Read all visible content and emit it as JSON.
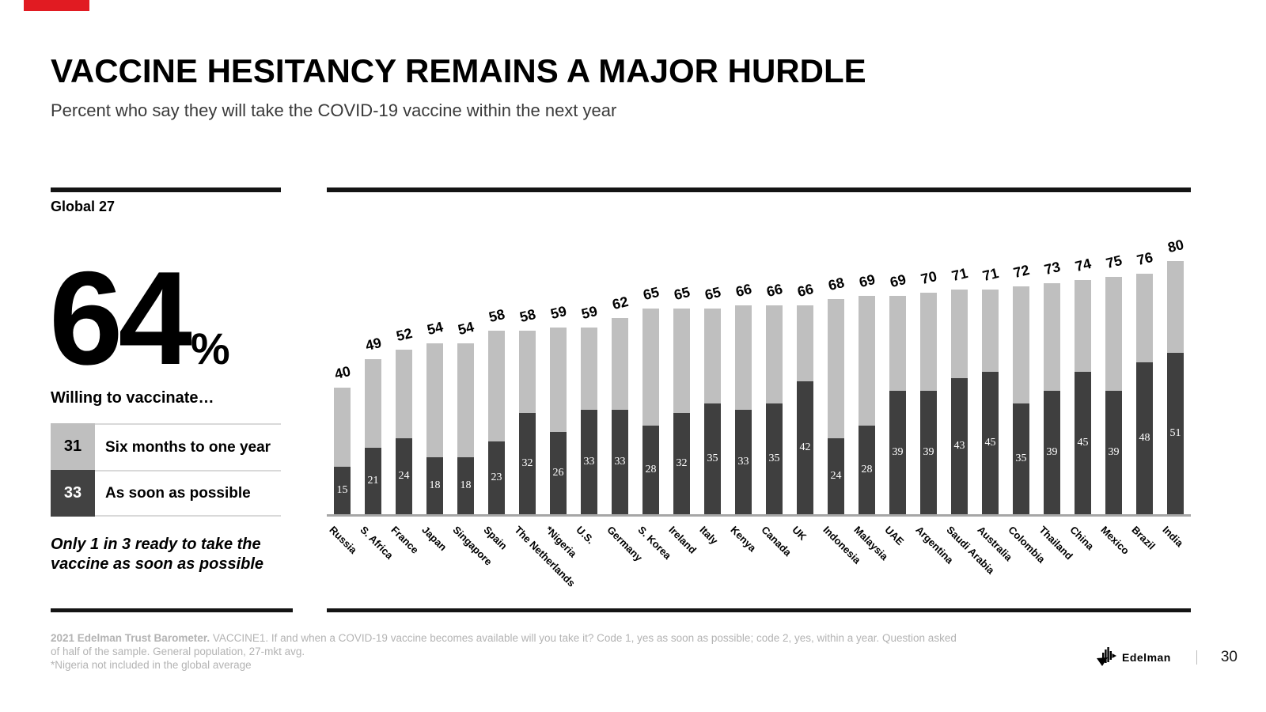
{
  "header": {
    "title": "VACCINE HESITANCY REMAINS A MAJOR HURDLE",
    "subtitle": "Percent who say they will take the COVID-19 vaccine within the next year"
  },
  "panel": {
    "group_label": "Global 27",
    "big_value": "64",
    "percent_sign": "%",
    "willing_label": "Willing to vaccinate…",
    "legend": [
      {
        "value": "31",
        "label": "Six months to one year",
        "swatch_color": "#bfbfbf"
      },
      {
        "value": "33",
        "label": "As soon as possible",
        "swatch_color": "#3f3f3f"
      }
    ],
    "note_line1": "Only 1 in 3 ready to take the",
    "note_line2": "vaccine as soon as possible"
  },
  "chart_data": {
    "type": "bar",
    "stacked": true,
    "title": "Percent who say they will take the COVID-19 vaccine within the next year",
    "xlabel": "",
    "ylabel": "",
    "ylim": [
      0,
      80
    ],
    "grid": false,
    "legend_position": "left-panel",
    "categories": [
      "Russia",
      "S. Africa",
      "France",
      "Japan",
      "Singapore",
      "Spain",
      "The Netherlands",
      "*Nigeria",
      "U.S.",
      "Germany",
      "S. Korea",
      "Ireland",
      "Italy",
      "Kenya",
      "Canada",
      "UK",
      "Indonesia",
      "Malaysia",
      "UAE",
      "Argentina",
      "Saudi Arabia",
      "Australia",
      "Colombia",
      "Thailand",
      "China",
      "Mexico",
      "Brazil",
      "India"
    ],
    "series": [
      {
        "name": "As soon as possible",
        "color": "#3f3f3f",
        "values": [
          15,
          21,
          24,
          18,
          18,
          23,
          32,
          26,
          33,
          33,
          28,
          32,
          35,
          33,
          35,
          42,
          24,
          28,
          39,
          39,
          43,
          45,
          35,
          39,
          45,
          39,
          48,
          51
        ]
      },
      {
        "name": "Six months to one year",
        "color": "#bfbfbf",
        "values": [
          25,
          28,
          28,
          36,
          36,
          35,
          26,
          33,
          26,
          29,
          37,
          33,
          30,
          33,
          31,
          24,
          44,
          41,
          30,
          31,
          28,
          26,
          37,
          34,
          29,
          36,
          28,
          29
        ]
      }
    ],
    "totals": [
      40,
      49,
      52,
      54,
      54,
      58,
      58,
      59,
      59,
      62,
      65,
      65,
      65,
      66,
      66,
      66,
      68,
      69,
      69,
      70,
      71,
      71,
      72,
      73,
      74,
      75,
      76,
      80
    ]
  },
  "footer": {
    "source_bold": "2021 Edelman Trust Barometer.",
    "line1_rest": " VACCINE1. If and when a COVID-19 vaccine becomes available will you take it? Code 1, yes as soon as possible; code 2, yes, within a year. Question asked",
    "line2": "of half of the sample. General population, 27-mkt avg.",
    "line3": "*Nigeria not included in the global average",
    "brand": "Edelman",
    "page": "30"
  },
  "colors": {
    "accent_red": "#e11b22",
    "dark_bar": "#3f3f3f",
    "light_bar": "#bfbfbf",
    "baseline": "#a6a6a6",
    "rule": "#141414",
    "footnote_text": "#b3b3b3"
  }
}
